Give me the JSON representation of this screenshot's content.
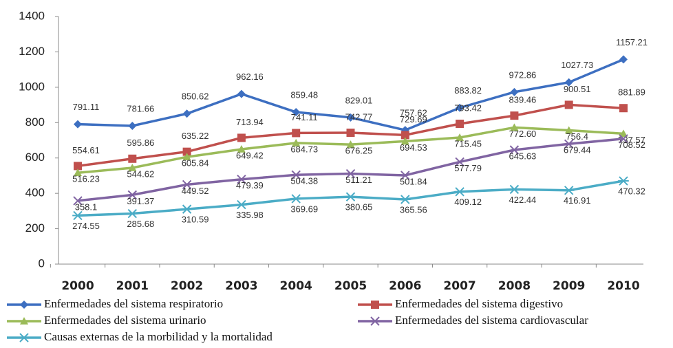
{
  "chart_data": {
    "type": "line",
    "categories": [
      "2000",
      "2001",
      "2002",
      "2003",
      "2004",
      "2005",
      "2006",
      "2007",
      "2008",
      "2009",
      "2010"
    ],
    "ylim": [
      0,
      1400
    ],
    "yticks": [
      0,
      200,
      400,
      600,
      800,
      1000,
      1200,
      1400
    ],
    "grid": false,
    "series": [
      {
        "name": "Enfermedades del sistema respiratorio",
        "color": "#3d6fc1",
        "marker": "diamond",
        "values": [
          791.11,
          781.66,
          850.62,
          962.16,
          859.48,
          829.01,
          757.62,
          883.82,
          972.86,
          1027.73,
          1157.21
        ]
      },
      {
        "name": "Enfermedades del sistema digestivo",
        "color": "#c0504d",
        "marker": "square",
        "values": [
          554.61,
          595.86,
          635.22,
          713.94,
          741.11,
          742.77,
          729.69,
          793.42,
          839.46,
          900.51,
          881.89
        ]
      },
      {
        "name": "Enfermedades del sistema urinario",
        "color": "#9bbb59",
        "marker": "triangle",
        "values": [
          516.23,
          544.62,
          605.84,
          649.42,
          684.73,
          676.25,
          694.53,
          715.45,
          772.6,
          756.4,
          737.57
        ],
        "value_labels": [
          "516.23",
          "544.62",
          "605.84",
          "649.42",
          "684.73",
          "676.25",
          "694.53",
          "715.45",
          "772.60",
          "756.4",
          "737.57"
        ]
      },
      {
        "name": "Enfermedades del sistema cardiovascular",
        "color": "#8064a2",
        "marker": "x",
        "values": [
          358.1,
          391.37,
          449.52,
          479.39,
          504.38,
          511.21,
          501.84,
          577.79,
          645.63,
          679.44,
          708.52
        ]
      },
      {
        "name": "Causas externas de la morbilidad y la mortalidad",
        "color": "#4bacc6",
        "marker": "star",
        "values": [
          274.55,
          285.68,
          310.59,
          335.98,
          369.69,
          380.65,
          365.56,
          409.12,
          422.44,
          416.91,
          470.32
        ]
      }
    ]
  }
}
